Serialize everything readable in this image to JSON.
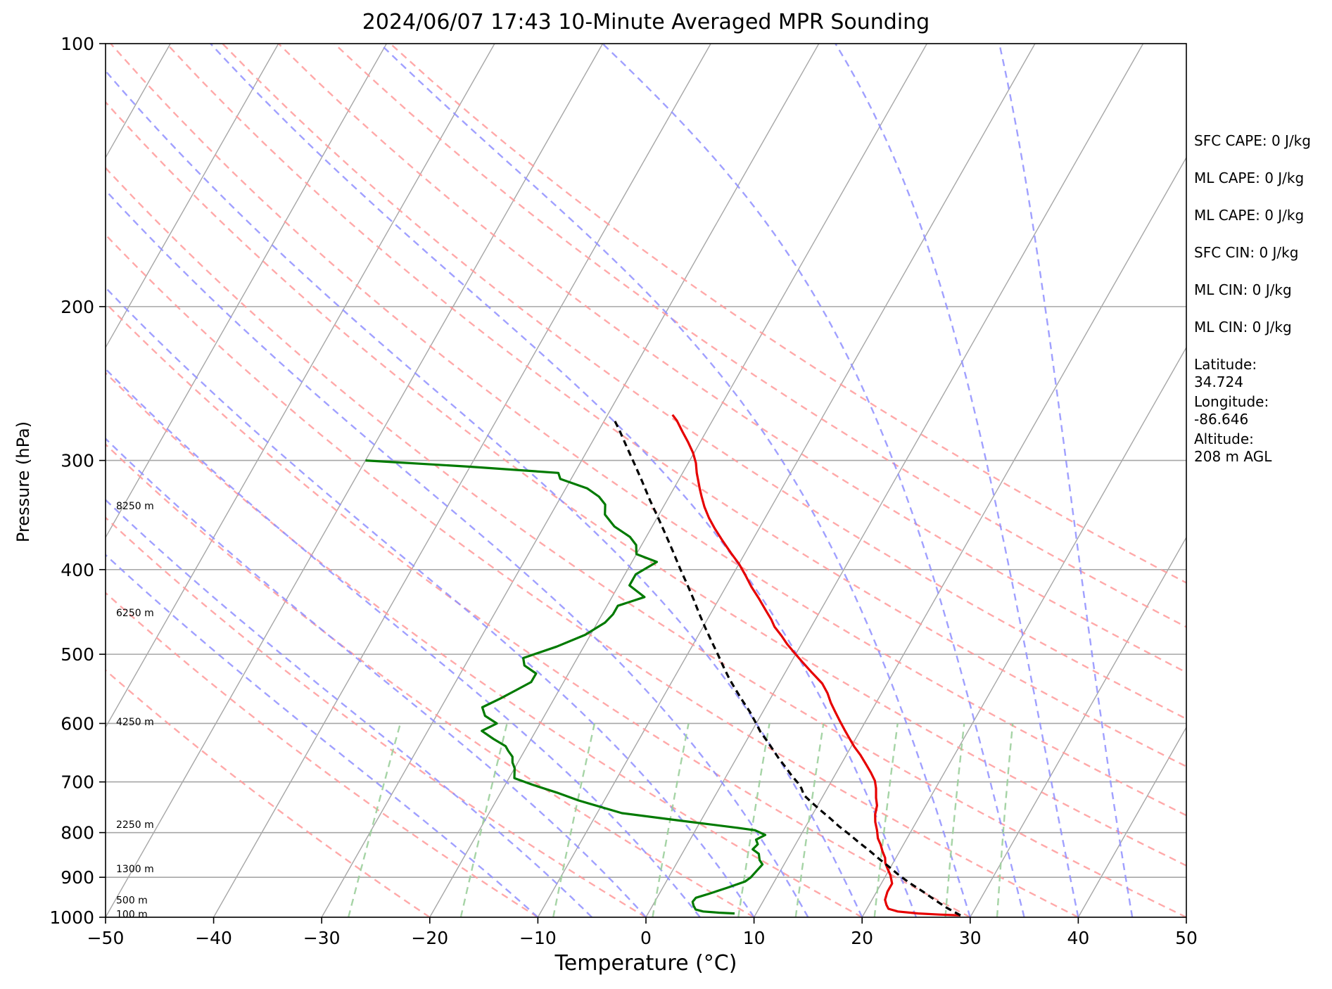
{
  "chart_data": {
    "type": "line",
    "title": "2024/06/07 17:43 10-Minute Averaged MPR Sounding",
    "xlabel": "Temperature (°C)",
    "ylabel": "Pressure (hPa)",
    "xlim": [
      -50,
      50
    ],
    "ylim": [
      1000,
      100
    ],
    "yscale": "log",
    "skew": "skew-T log-p",
    "grid": true,
    "x_ticks": [
      "−50",
      "−40",
      "−30",
      "−20",
      "−10",
      "0",
      "10",
      "20",
      "30",
      "40",
      "50"
    ],
    "y_ticks": [
      "100",
      "200",
      "300",
      "400",
      "500",
      "600",
      "700",
      "800",
      "900",
      "1000"
    ],
    "colors": {
      "temperature": "#e60000",
      "dewpoint": "#007a00",
      "parcel": "#000000",
      "isotherm": "#a6a6a6",
      "isobar": "#a6a6a6",
      "dry_adiabat": "#ff9a9a",
      "moist_adiabat": "#8f8fff",
      "mixing_ratio": "#9ccf9c"
    },
    "series": [
      {
        "key": "temperature",
        "points": [
          [
            29,
            995
          ],
          [
            27,
            993
          ],
          [
            25,
            990
          ],
          [
            23,
            985
          ],
          [
            22,
            978
          ],
          [
            21.6,
            968
          ],
          [
            21.2,
            955
          ],
          [
            21,
            935
          ],
          [
            21,
            915
          ],
          [
            20.4,
            895
          ],
          [
            19.8,
            880
          ],
          [
            19.3,
            867
          ],
          [
            19.0,
            855
          ],
          [
            18.4,
            840
          ],
          [
            17.9,
            826
          ],
          [
            17.3,
            812
          ],
          [
            16.8,
            795
          ],
          [
            16.2,
            778
          ],
          [
            15.8,
            763
          ],
          [
            15.5,
            745
          ],
          [
            15.0,
            730
          ],
          [
            14.5,
            712
          ],
          [
            14.0,
            698
          ],
          [
            13.2,
            683
          ],
          [
            12.3,
            668
          ],
          [
            11.3,
            652
          ],
          [
            10.3,
            638
          ],
          [
            9.4,
            624
          ],
          [
            8.5,
            610
          ],
          [
            7.6,
            596
          ],
          [
            6.7,
            582
          ],
          [
            5.8,
            568
          ],
          [
            5.0,
            554
          ],
          [
            4.0,
            540
          ],
          [
            2.5,
            525
          ],
          [
            1.0,
            510
          ],
          [
            0,
            500
          ],
          [
            -1.3,
            487
          ],
          [
            -2.3,
            476
          ],
          [
            -3.4,
            465
          ],
          [
            -4.1,
            456
          ],
          [
            -5.1,
            445
          ],
          [
            -6.3,
            432
          ],
          [
            -7.6,
            419
          ],
          [
            -8.8,
            406
          ],
          [
            -10.0,
            394
          ],
          [
            -11.3,
            383
          ],
          [
            -12.7,
            371
          ],
          [
            -14.1,
            359
          ],
          [
            -15.2,
            349
          ],
          [
            -16.2,
            339
          ],
          [
            -17.0,
            330
          ],
          [
            -17.6,
            323
          ],
          [
            -18.1,
            317
          ],
          [
            -18.7,
            310
          ],
          [
            -19.3,
            302
          ],
          [
            -20.1,
            294
          ],
          [
            -21.1,
            286
          ],
          [
            -22.2,
            278
          ],
          [
            -23.3,
            270
          ],
          [
            -24.0,
            266
          ]
        ]
      },
      {
        "key": "dewpoint",
        "points": [
          [
            8,
            990
          ],
          [
            6.5,
            988
          ],
          [
            5,
            985
          ],
          [
            4.2,
            980
          ],
          [
            3.8,
            970
          ],
          [
            3.5,
            960
          ],
          [
            3.6,
            950
          ],
          [
            4.6,
            940
          ],
          [
            6.0,
            925
          ],
          [
            7.3,
            910
          ],
          [
            7.6,
            900
          ],
          [
            7.8,
            885
          ],
          [
            8.0,
            870
          ],
          [
            7.5,
            860
          ],
          [
            7.1,
            846
          ],
          [
            6.3,
            836
          ],
          [
            6.5,
            825
          ],
          [
            6.1,
            815
          ],
          [
            6.7,
            805
          ],
          [
            5.5,
            795
          ],
          [
            3.8,
            790
          ],
          [
            -2,
            775
          ],
          [
            -7.7,
            760
          ],
          [
            -12.4,
            735
          ],
          [
            -14.8,
            720
          ],
          [
            -17.5,
            705
          ],
          [
            -19.5,
            693
          ],
          [
            -20.0,
            675
          ],
          [
            -20.5,
            665
          ],
          [
            -20.8,
            655
          ],
          [
            -21.5,
            645
          ],
          [
            -22.0,
            637
          ],
          [
            -23.5,
            625
          ],
          [
            -25.0,
            612
          ],
          [
            -24.0,
            600
          ],
          [
            -25.5,
            588
          ],
          [
            -26.2,
            575
          ],
          [
            -25.0,
            562
          ],
          [
            -24.0,
            550
          ],
          [
            -23.0,
            538
          ],
          [
            -23.0,
            526
          ],
          [
            -24.5,
            515
          ],
          [
            -25.0,
            505
          ],
          [
            -22.5,
            490
          ],
          [
            -20.5,
            475
          ],
          [
            -19.3,
            460
          ],
          [
            -19.0,
            450
          ],
          [
            -19.0,
            440
          ],
          [
            -17.0,
            430
          ],
          [
            -19.0,
            417
          ],
          [
            -19.0,
            405
          ],
          [
            -17.7,
            392
          ],
          [
            -20.0,
            384
          ],
          [
            -20.5,
            375
          ],
          [
            -21.5,
            367
          ],
          [
            -23.5,
            357
          ],
          [
            -25.0,
            346
          ],
          [
            -25.5,
            337
          ],
          [
            -26.5,
            330
          ],
          [
            -28.0,
            323
          ],
          [
            -31.0,
            315
          ],
          [
            -31.5,
            310
          ],
          [
            -40.0,
            305
          ],
          [
            -50.0,
            300
          ]
        ]
      },
      {
        "key": "parcel",
        "points": [
          [
            29,
            995
          ],
          [
            27.3,
            975
          ],
          [
            25.8,
            955
          ],
          [
            24.3,
            935
          ],
          [
            22.7,
            915
          ],
          [
            21.2,
            895
          ],
          [
            19.8,
            875
          ],
          [
            18.4,
            856
          ],
          [
            17.1,
            838
          ],
          [
            15.7,
            820
          ],
          [
            14.4,
            803
          ],
          [
            13.0,
            786
          ],
          [
            11.8,
            770
          ],
          [
            10.5,
            754
          ],
          [
            9.3,
            739
          ],
          [
            8.2,
            725
          ],
          [
            7.6,
            712
          ],
          [
            7.0,
            702
          ],
          [
            6.0,
            688
          ],
          [
            5.0,
            673
          ],
          [
            4.0,
            659
          ],
          [
            3.0,
            644
          ],
          [
            1.9,
            628
          ],
          [
            0.8,
            613
          ],
          [
            -0.2,
            597
          ],
          [
            -1.2,
            582
          ],
          [
            -2.4,
            566
          ],
          [
            -3.6,
            550
          ],
          [
            -4.8,
            534
          ],
          [
            -6.0,
            517
          ],
          [
            -7.2,
            500
          ],
          [
            -8.4,
            484
          ],
          [
            -9.7,
            467
          ],
          [
            -11.0,
            450
          ],
          [
            -12.3,
            433
          ],
          [
            -13.7,
            416
          ],
          [
            -15.2,
            399
          ],
          [
            -16.7,
            382
          ],
          [
            -18.3,
            365
          ],
          [
            -19.9,
            349
          ],
          [
            -21.6,
            333
          ],
          [
            -23.3,
            317
          ],
          [
            -24.9,
            303
          ],
          [
            -26.6,
            289
          ],
          [
            -28.1,
            277
          ],
          [
            -29.2,
            269
          ]
        ]
      }
    ],
    "isotherms_c": [
      -150,
      -140,
      -130,
      -120,
      -110,
      -100,
      -90,
      -80,
      -70,
      -60,
      -50,
      -40,
      -30,
      -20,
      -10,
      0,
      10,
      20,
      30,
      40,
      50
    ],
    "dry_adiabats_c": [
      -20,
      -10,
      0,
      10,
      20,
      30,
      40,
      50,
      60,
      70,
      80,
      90,
      100,
      110,
      120
    ],
    "moist_adiabats_c": [
      -10,
      -5,
      0,
      5,
      10,
      15,
      20,
      25,
      30,
      35,
      40,
      45
    ],
    "mixing_ratios_gkg": [
      0.4,
      1,
      2,
      4,
      7,
      10,
      16,
      24,
      32
    ],
    "height_labels": [
      {
        "text": "8250 m",
        "p": 338
      },
      {
        "text": "6250 m",
        "p": 448
      },
      {
        "text": "4250 m",
        "p": 597
      },
      {
        "text": "2250 m",
        "p": 783
      },
      {
        "text": "1300 m",
        "p": 880
      },
      {
        "text": "500 m",
        "p": 956
      },
      {
        "text": "100 m",
        "p": 992
      }
    ]
  },
  "info": [
    {
      "label": "SFC CAPE: 0 J/kg"
    },
    {
      "label": "ML CAPE: 0 J/kg"
    },
    {
      "label": "ML CAPE: 0 J/kg"
    },
    {
      "label": "SFC CIN: 0 J/kg"
    },
    {
      "label": "ML CIN: 0 J/kg"
    },
    {
      "label": "ML CIN: 0 J/kg"
    },
    {
      "label": "Latitude:\n34.724"
    },
    {
      "label": "Longitude:\n-86.646"
    },
    {
      "label": "Altitude:\n208 m AGL"
    }
  ]
}
